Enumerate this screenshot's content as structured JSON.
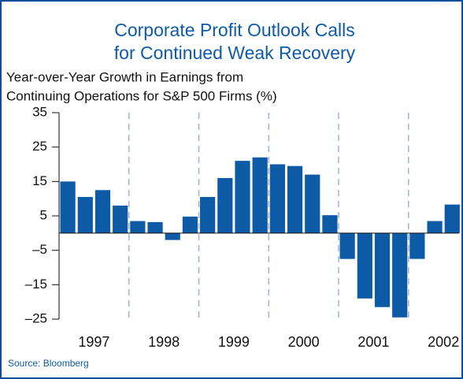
{
  "chart_data": {
    "type": "bar",
    "title": [
      "Corporate Profit Outlook Calls",
      "for Continued Weak Recovery"
    ],
    "subtitle": [
      "Year-over-Year Growth in Earnings from",
      "Continuing Operations for S&P 500 Firms (%)"
    ],
    "source": "Source: Bloomberg",
    "color": "#0d5aa7",
    "groups": [
      {
        "label": "1997",
        "values": [
          15,
          10.5,
          12.5,
          8
        ]
      },
      {
        "label": "1998",
        "values": [
          3.5,
          3.2,
          -2,
          4.8
        ]
      },
      {
        "label": "1999",
        "values": [
          10.5,
          16,
          21,
          22
        ]
      },
      {
        "label": "2000",
        "values": [
          20,
          19.5,
          17,
          5.2
        ]
      },
      {
        "label": "2001",
        "values": [
          -7.5,
          -19,
          -21.5,
          -24.5
        ]
      },
      {
        "label": "2002",
        "values": [
          -7.5,
          3.5,
          8.3
        ]
      }
    ],
    "ylim": [
      -25,
      35
    ],
    "yticks": [
      35,
      25,
      15,
      5,
      {
        "value": -5,
        "label": "–5"
      },
      {
        "value": -15,
        "label": "–15"
      },
      {
        "value": -25,
        "label": "–25"
      }
    ]
  }
}
